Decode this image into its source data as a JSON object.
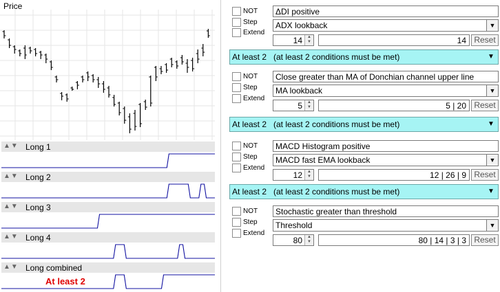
{
  "price_chart": {
    "title": "Price",
    "bars": [
      {
        "h": 42,
        "l": 55,
        "o": 45,
        "c": 52
      },
      {
        "h": 64,
        "l": 82,
        "o": 70,
        "c": 76
      },
      {
        "h": 72,
        "l": 92,
        "o": 78,
        "c": 86
      },
      {
        "h": 84,
        "l": 104,
        "o": 88,
        "c": 100
      },
      {
        "h": 86,
        "l": 106,
        "o": 92,
        "c": 98
      },
      {
        "h": 80,
        "l": 94,
        "o": 84,
        "c": 90
      },
      {
        "h": 88,
        "l": 100,
        "o": 90,
        "c": 96
      },
      {
        "h": 84,
        "l": 98,
        "o": 86,
        "c": 94
      },
      {
        "h": 92,
        "l": 106,
        "o": 94,
        "c": 102
      },
      {
        "h": 96,
        "l": 108,
        "o": 100,
        "c": 104
      },
      {
        "h": 96,
        "l": 118,
        "o": 98,
        "c": 112
      },
      {
        "h": 110,
        "l": 155,
        "o": 112,
        "c": 150
      },
      {
        "h": 145,
        "l": 160,
        "o": 148,
        "c": 156
      },
      {
        "h": 150,
        "l": 185,
        "o": 152,
        "c": 180
      },
      {
        "h": 160,
        "l": 190,
        "o": 165,
        "c": 184
      },
      {
        "h": 165,
        "l": 194,
        "o": 170,
        "c": 188
      },
      {
        "h": 155,
        "l": 180,
        "o": 158,
        "c": 175
      },
      {
        "h": 148,
        "l": 168,
        "o": 150,
        "c": 164
      },
      {
        "h": 138,
        "l": 155,
        "o": 142,
        "c": 152
      },
      {
        "h": 125,
        "l": 142,
        "o": 128,
        "c": 138
      },
      {
        "h": 118,
        "l": 135,
        "o": 122,
        "c": 130
      },
      {
        "h": 112,
        "l": 128,
        "o": 116,
        "c": 122
      },
      {
        "h": 108,
        "l": 120,
        "o": 110,
        "c": 116
      },
      {
        "h": 104,
        "l": 118,
        "o": 106,
        "c": 112
      },
      {
        "h": 110,
        "l": 120,
        "o": 112,
        "c": 116
      },
      {
        "h": 118,
        "l": 130,
        "o": 120,
        "c": 124
      },
      {
        "h": 126,
        "l": 132,
        "o": 128,
        "c": 130
      },
      {
        "h": 136,
        "l": 148,
        "o": 138,
        "c": 144
      },
      {
        "h": 134,
        "l": 146,
        "o": 136,
        "c": 140
      },
      {
        "h": 110,
        "l": 120,
        "o": 112,
        "c": 116
      },
      {
        "h": 88,
        "l": 102,
        "o": 90,
        "c": 98
      },
      {
        "h": 78,
        "l": 92,
        "o": 80,
        "c": 86
      },
      {
        "h": 74,
        "l": 86,
        "o": 76,
        "c": 80
      },
      {
        "h": 70,
        "l": 82,
        "o": 72,
        "c": 78
      },
      {
        "h": 68,
        "l": 78,
        "o": 70,
        "c": 74
      },
      {
        "h": 66,
        "l": 86,
        "o": 70,
        "c": 80
      },
      {
        "h": 72,
        "l": 82,
        "o": 74,
        "c": 78
      },
      {
        "h": 66,
        "l": 78,
        "o": 68,
        "c": 72
      },
      {
        "h": 56,
        "l": 70,
        "o": 58,
        "c": 66
      },
      {
        "h": 44,
        "l": 56,
        "o": 46,
        "c": 52
      }
    ]
  },
  "signal_panels": [
    {
      "label": "Long 1",
      "arrows": "▲▼",
      "signal": [
        0,
        0,
        0,
        0,
        0,
        0,
        0,
        0,
        0,
        0,
        0,
        0,
        0,
        0,
        0,
        0,
        0,
        0,
        0,
        0,
        0,
        0,
        0,
        0,
        0,
        0,
        0,
        0,
        0,
        0,
        0,
        1,
        1,
        1,
        1,
        1,
        1,
        1,
        1,
        1
      ]
    },
    {
      "label": "Long 2",
      "arrows": "▲▼",
      "signal": [
        0,
        0,
        0,
        0,
        0,
        0,
        0,
        0,
        0,
        0,
        0,
        0,
        0,
        0,
        0,
        0,
        0,
        0,
        0,
        0,
        0,
        0,
        0,
        0,
        0,
        0,
        0,
        0,
        0,
        0,
        0,
        1,
        1,
        1,
        1,
        0,
        0,
        1,
        0,
        0
      ]
    },
    {
      "label": "Long 3",
      "arrows": "▲▼",
      "signal": [
        0,
        0,
        0,
        0,
        0,
        0,
        0,
        0,
        0,
        0,
        0,
        0,
        0,
        0,
        0,
        0,
        0,
        0,
        1,
        1,
        1,
        1,
        1,
        1,
        1,
        1,
        1,
        1,
        1,
        1,
        1,
        1,
        1,
        1,
        1,
        1,
        1,
        1,
        1,
        1
      ]
    },
    {
      "label": "Long 4",
      "arrows": "▲▼",
      "signal": [
        0,
        0,
        0,
        0,
        0,
        0,
        0,
        0,
        0,
        0,
        0,
        0,
        0,
        0,
        0,
        0,
        0,
        0,
        0,
        0,
        0,
        1,
        1,
        0,
        0,
        0,
        0,
        0,
        0,
        0,
        0,
        0,
        0,
        1,
        0,
        0,
        0,
        0,
        0,
        0
      ]
    },
    {
      "label": "Long combined",
      "arrows": "▲▼",
      "signal": [
        0,
        0,
        0,
        0,
        0,
        0,
        0,
        0,
        0,
        0,
        0,
        0,
        0,
        0,
        0,
        0,
        0,
        0,
        0,
        0,
        0,
        1,
        1,
        0,
        0,
        0,
        0,
        0,
        0,
        0,
        1,
        1,
        1,
        1,
        1,
        1,
        1,
        1,
        1,
        1
      ],
      "annotation": "At least 2"
    }
  ],
  "conditions": [
    {
      "not_label": "NOT",
      "step_label": "Step",
      "extend_label": "Extend",
      "name": "ΔDI positive",
      "param_select": "ADX lookback",
      "spin_value": "14",
      "params_text": "14",
      "reset_label": "Reset"
    },
    {
      "not_label": "NOT",
      "step_label": "Step",
      "extend_label": "Extend",
      "name": "Close greater than MA of Donchian channel upper line",
      "param_select": "MA lookback",
      "spin_value": "5",
      "params_text": "5 | 20",
      "reset_label": "Reset"
    },
    {
      "not_label": "NOT",
      "step_label": "Step",
      "extend_label": "Extend",
      "name": "MACD Histogram positive",
      "param_select": "MACD fast EMA lookback",
      "spin_value": "12",
      "params_text": "12 | 26 | 9",
      "reset_label": "Reset"
    },
    {
      "not_label": "NOT",
      "step_label": "Step",
      "extend_label": "Extend",
      "name": "Stochastic greater than threshold",
      "param_select": "Threshold",
      "spin_value": "80",
      "params_text": "80 | 14 | 3 | 3",
      "reset_label": "Reset"
    }
  ],
  "combiners": [
    {
      "mode": "At least 2",
      "desc": "(at least 2 conditions must be met)"
    },
    {
      "mode": "At least 2",
      "desc": "(at least 2 conditions must be met)"
    },
    {
      "mode": "At least 2",
      "desc": "(at least 2 conditions must be met)"
    }
  ],
  "colors": {
    "signal_line": "#1010a0",
    "combiner_bg": "#a6f4f4",
    "annotation": "#e00000"
  }
}
